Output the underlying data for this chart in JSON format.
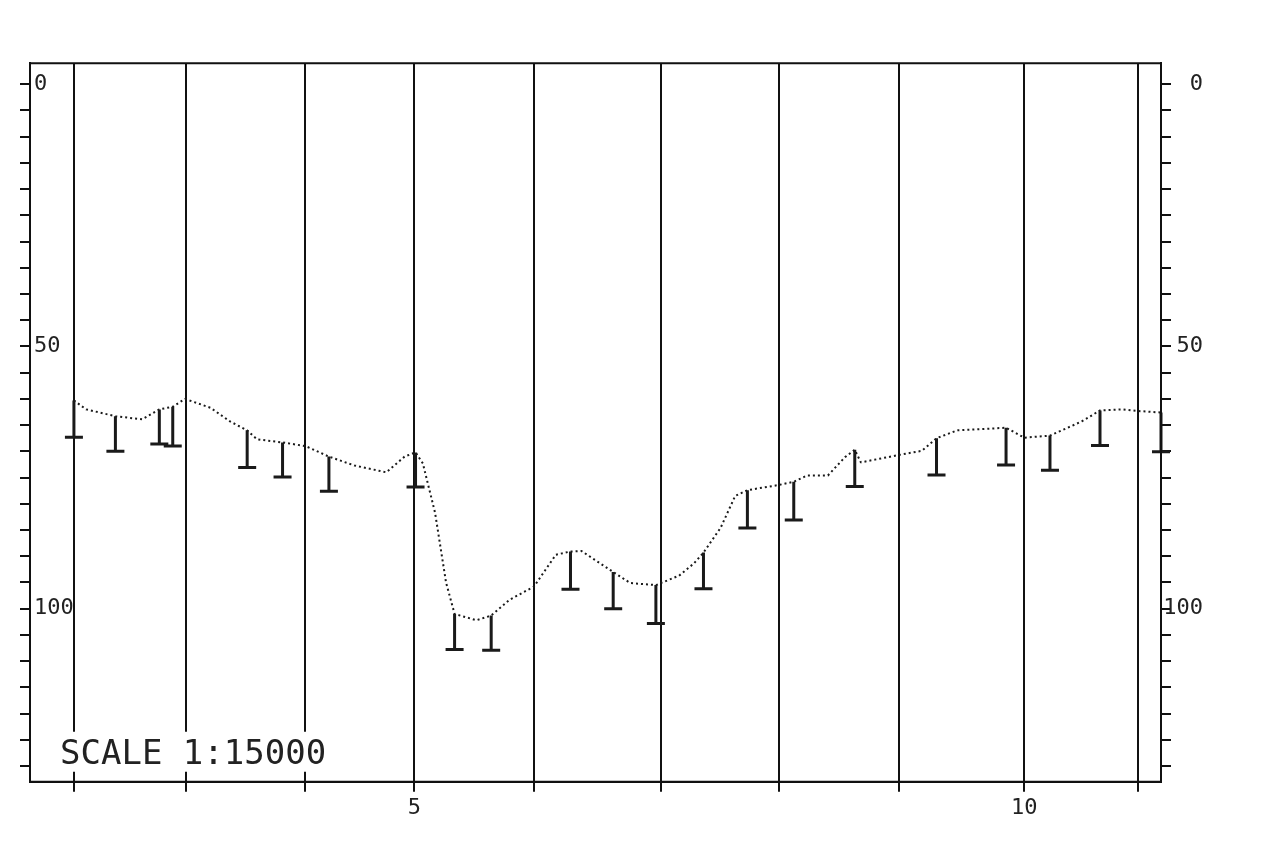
{
  "chart_data": {
    "type": "line",
    "x": [
      2.21,
      2.31,
      2.55,
      2.77,
      2.91,
      3.02,
      3.12,
      3.33,
      3.49,
      3.63,
      3.71,
      3.92,
      4.11,
      4.3,
      4.51,
      4.77,
      4.92,
      5.01,
      5.07,
      5.17,
      5.26,
      5.33,
      5.51,
      5.63,
      5.78,
      5.98,
      6.16,
      6.28,
      6.37,
      6.63,
      6.77,
      6.98,
      7.17,
      7.29,
      7.37,
      7.51,
      7.63,
      7.73,
      7.99,
      8.11,
      8.22,
      8.39,
      8.53,
      8.61,
      8.66,
      8.97,
      9.16,
      9.28,
      9.45,
      9.85,
      10.0,
      10.21,
      10.47,
      10.62,
      10.81,
      10.93,
      11.12
    ],
    "series": [
      {
        "color": "#1a1a1a",
        "values": [
          60.3,
          62,
          63.3,
          63.9,
          62,
          61.5,
          60,
          61.7,
          64.3,
          66,
          67.7,
          68.3,
          69,
          71,
          72.7,
          74,
          71,
          70.2,
          72.3,
          81.7,
          95,
          101,
          102.2,
          101.3,
          98.3,
          95.8,
          89.7,
          89.1,
          89,
          93,
          95.1,
          95.5,
          93.7,
          91.4,
          89.3,
          84.6,
          78.5,
          77.4,
          76.4,
          75.8,
          74.6,
          74.6,
          71.1,
          69.7,
          72.1,
          70.7,
          69.9,
          67.5,
          66,
          65.5,
          67.4,
          67,
          64.3,
          62.2,
          62,
          62.3,
          62.6
        ],
        "errors": [
          [
            60.3,
            67.3
          ],
          null,
          [
            63.3,
            70
          ],
          null,
          [
            62,
            68.6
          ],
          [
            61.5,
            69
          ],
          null,
          null,
          null,
          [
            66,
            73.1
          ],
          null,
          [
            68.3,
            74.9
          ],
          null,
          [
            71,
            77.6
          ],
          null,
          null,
          null,
          [
            70.2,
            76.8
          ],
          null,
          null,
          null,
          [
            101,
            107.8
          ],
          null,
          [
            101.3,
            107.9
          ],
          null,
          null,
          null,
          [
            89.1,
            96.3
          ],
          null,
          [
            93,
            100
          ],
          null,
          [
            95.5,
            102.8
          ],
          null,
          null,
          [
            89.3,
            96.2
          ],
          null,
          null,
          [
            77.4,
            84.6
          ],
          null,
          [
            75.8,
            83.1
          ],
          null,
          null,
          null,
          [
            69.7,
            76.7
          ],
          null,
          null,
          null,
          [
            67.5,
            74.5
          ],
          null,
          [
            65.5,
            72.6
          ],
          null,
          [
            67,
            73.6
          ],
          null,
          [
            62.2,
            68.9
          ],
          null,
          null,
          [
            62.6,
            70.1
          ]
        ]
      }
    ],
    "xlim": [
      1.85,
      11.12
    ],
    "xticks": [
      {
        "value": 2.21,
        "label": null
      },
      {
        "value": 3.13,
        "label": null
      },
      {
        "value": 4.1,
        "label": null
      },
      5,
      {
        "value": 5.98,
        "label": null
      },
      {
        "value": 7.02,
        "label": null
      },
      {
        "value": 7.99,
        "label": null
      },
      {
        "value": 8.97,
        "label": null
      },
      10,
      {
        "value": 10.93,
        "label": null
      }
    ],
    "ylim": [
      133,
      -4
    ],
    "yticks": [
      0,
      {
        "value": 5,
        "label": null
      },
      {
        "value": 10,
        "label": null
      },
      {
        "value": 15,
        "label": null
      },
      {
        "value": 20,
        "label": null
      },
      {
        "value": 25,
        "label": null
      },
      {
        "value": 30,
        "label": null
      },
      {
        "value": 35,
        "label": null
      },
      {
        "value": 40,
        "label": null
      },
      {
        "value": 45,
        "label": null
      },
      50,
      {
        "value": 55,
        "label": null
      },
      {
        "value": 60,
        "label": null
      },
      {
        "value": 65,
        "label": null
      },
      {
        "value": 70,
        "label": null
      },
      {
        "value": 75,
        "label": null
      },
      {
        "value": 80,
        "label": null
      },
      {
        "value": 85,
        "label": null
      },
      {
        "value": 90,
        "label": null
      },
      {
        "value": 95,
        "label": null
      },
      100,
      {
        "value": 105,
        "label": null
      },
      {
        "value": 110,
        "label": null
      },
      {
        "value": 115,
        "label": null
      },
      {
        "value": 120,
        "label": null
      },
      {
        "value": 125,
        "label": null
      },
      {
        "value": 130,
        "label": null
      }
    ],
    "y2lim": [
      133,
      -4
    ],
    "y2ticks": [
      0,
      {
        "value": 5,
        "label": null
      },
      {
        "value": 10,
        "label": null
      },
      {
        "value": 15,
        "label": null
      },
      {
        "value": 20,
        "label": null
      },
      {
        "value": 25,
        "label": null
      },
      {
        "value": 30,
        "label": null
      },
      {
        "value": 35,
        "label": null
      },
      {
        "value": 40,
        "label": null
      },
      {
        "value": 45,
        "label": null
      },
      50,
      {
        "value": 55,
        "label": null
      },
      {
        "value": 60,
        "label": null
      },
      {
        "value": 65,
        "label": null
      },
      {
        "value": 70,
        "label": null
      },
      {
        "value": 75,
        "label": null
      },
      {
        "value": 80,
        "label": null
      },
      {
        "value": 85,
        "label": null
      },
      {
        "value": 90,
        "label": null
      },
      {
        "value": 95,
        "label": null
      },
      100,
      {
        "value": 105,
        "label": null
      },
      {
        "value": 110,
        "label": null
      },
      {
        "value": 115,
        "label": null
      },
      {
        "value": 120,
        "label": null
      },
      {
        "value": 125,
        "label": null
      },
      {
        "value": 130,
        "label": null
      }
    ],
    "grid": "x",
    "marker": "none",
    "line_style": "dotted",
    "annotations": [
      "SCALE 1:15000"
    ]
  }
}
